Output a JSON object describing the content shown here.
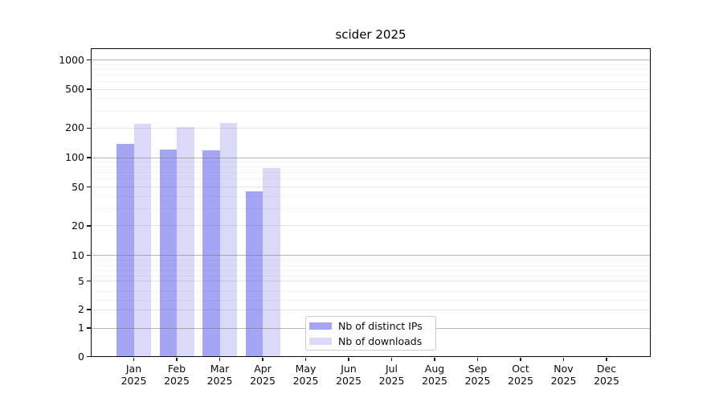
{
  "title": "scider 2025",
  "chart_data": {
    "type": "bar",
    "title": "scider 2025",
    "categories": [
      "Jan 2025",
      "Feb 2025",
      "Mar 2025",
      "Apr 2025",
      "May 2025",
      "Jun 2025",
      "Jul 2025",
      "Aug 2025",
      "Sep 2025",
      "Oct 2025",
      "Nov 2025",
      "Dec 2025"
    ],
    "series": [
      {
        "name": "Nb of distinct IPs",
        "color": "#a5a5f5",
        "values": [
          137,
          122,
          119,
          45,
          null,
          null,
          null,
          null,
          null,
          null,
          null,
          null
        ]
      },
      {
        "name": "Nb of downloads",
        "color": "#dadaf8",
        "values": [
          221,
          207,
          228,
          78,
          null,
          null,
          null,
          null,
          null,
          null,
          null,
          null
        ]
      }
    ],
    "x_axis": {
      "month_labels": [
        "Jan",
        "Feb",
        "Mar",
        "Apr",
        "May",
        "Jun",
        "Jul",
        "Aug",
        "Sep",
        "Oct",
        "Nov",
        "Dec"
      ],
      "year_label": "2025"
    },
    "y_axis": {
      "scale": "log-like with 0 baseline",
      "ticks": [
        1000,
        500,
        200,
        100,
        50,
        20,
        10,
        5,
        2,
        1,
        0
      ],
      "ylim": [
        0,
        1300
      ],
      "grid": "major and minor horizontal gridlines"
    },
    "legend": {
      "position": "inside bottom-center",
      "entries": [
        "Nb of distinct IPs",
        "Nb of downloads"
      ]
    }
  }
}
